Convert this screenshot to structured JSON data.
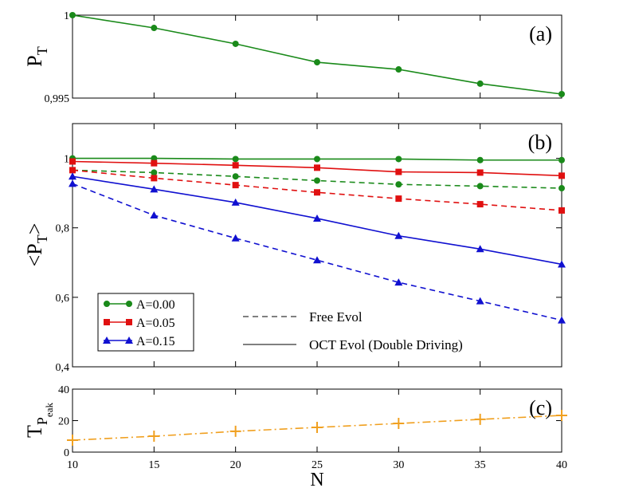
{
  "chart_data": [
    {
      "type": "line",
      "annotation": "(a)",
      "ylabel": [
        "P",
        "T"
      ],
      "x": [
        10,
        15,
        20,
        25,
        30,
        35,
        40
      ],
      "xlim": [
        10,
        40
      ],
      "xticks": [
        10,
        15,
        20,
        25,
        30,
        35,
        40
      ],
      "ylim": [
        0.995,
        1
      ],
      "yticks": [
        {
          "value": 0.995,
          "label": "0,995"
        },
        1
      ],
      "series": [
        {
          "color": "#1a8a1a",
          "marker": "circle",
          "dash": "solid",
          "values": [
            1.0,
            0.99923,
            0.99827,
            0.99716,
            0.99673,
            0.99587,
            0.99524
          ]
        }
      ]
    },
    {
      "type": "line",
      "annotation": "(b)",
      "ylabel": [
        "<P",
        "T",
        ">"
      ],
      "x": [
        10,
        15,
        20,
        25,
        30,
        35,
        40
      ],
      "xlim": [
        10,
        40
      ],
      "xticks": [
        10,
        15,
        20,
        25,
        30,
        35,
        40
      ],
      "ylim": [
        0.4,
        1.1
      ],
      "yticks": [
        {
          "value": 0.4,
          "label": "0,4"
        },
        {
          "value": 0.6,
          "label": "0,6"
        },
        {
          "value": 0.8,
          "label": "0,8"
        },
        1
      ],
      "legend": [
        {
          "name": "A=0.00",
          "color": "#1a8a1a",
          "marker": "circle"
        },
        {
          "name": "A=0.05",
          "color": "#e01010",
          "marker": "square"
        },
        {
          "name": "A=0.15",
          "color": "#1010d0",
          "marker": "triangle"
        }
      ],
      "style_legend": [
        {
          "name": "Free Evol",
          "dash": "dashed"
        },
        {
          "name": "OCT Evol (Double Driving)",
          "dash": "solid"
        }
      ],
      "series": [
        {
          "color": "#1a8a1a",
          "marker": "circle",
          "dash": "solid",
          "values": [
            1.0,
            1.0,
            0.998,
            0.998,
            0.998,
            0.995,
            0.995
          ]
        },
        {
          "color": "#1a8a1a",
          "marker": "circle",
          "dash": "dashed",
          "values": [
            0.966,
            0.959,
            0.948,
            0.936,
            0.925,
            0.92,
            0.914
          ]
        },
        {
          "color": "#e01010",
          "marker": "square",
          "dash": "solid",
          "values": [
            0.991,
            0.986,
            0.98,
            0.973,
            0.961,
            0.959,
            0.95
          ]
        },
        {
          "color": "#e01010",
          "marker": "square",
          "dash": "dashed",
          "values": [
            0.966,
            0.943,
            0.923,
            0.902,
            0.884,
            0.868,
            0.85
          ]
        },
        {
          "color": "#1010d0",
          "marker": "triangle",
          "dash": "solid",
          "values": [
            0.948,
            0.911,
            0.873,
            0.827,
            0.777,
            0.739,
            0.695
          ]
        },
        {
          "color": "#1010d0",
          "marker": "triangle",
          "dash": "dashed",
          "values": [
            0.927,
            0.836,
            0.77,
            0.707,
            0.643,
            0.589,
            0.534
          ]
        }
      ]
    },
    {
      "type": "line",
      "annotation": "(c)",
      "ylabel": [
        "T",
        "P",
        "eak"
      ],
      "xlabel": "N",
      "x": [
        10,
        15,
        20,
        25,
        30,
        35,
        40
      ],
      "xlim": [
        10,
        40
      ],
      "xticks": [
        10,
        15,
        20,
        25,
        30,
        35,
        40
      ],
      "ylim": [
        0,
        40
      ],
      "yticks": [
        0,
        20,
        40
      ],
      "series": [
        {
          "color": "#f0a020",
          "marker": "plus",
          "dash": "dashdot",
          "values": [
            7.6,
            10.1,
            13.2,
            15.7,
            18.2,
            20.8,
            23.3
          ]
        }
      ]
    }
  ]
}
